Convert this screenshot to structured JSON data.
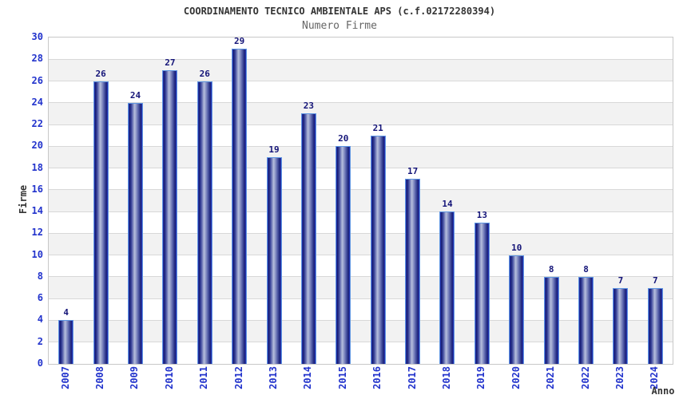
{
  "chart_data": {
    "type": "bar",
    "title": "COORDINAMENTO TECNICO AMBIENTALE APS (c.f.02172280394)",
    "subtitle": "Numero Firme",
    "xlabel": "Anno",
    "ylabel": "Firme",
    "categories": [
      "2007",
      "2008",
      "2009",
      "2010",
      "2011",
      "2012",
      "2013",
      "2014",
      "2015",
      "2016",
      "2017",
      "2018",
      "2019",
      "2020",
      "2021",
      "2022",
      "2023",
      "2024"
    ],
    "values": [
      4,
      26,
      24,
      27,
      26,
      29,
      19,
      23,
      20,
      21,
      17,
      14,
      13,
      10,
      8,
      8,
      7,
      7
    ],
    "ylim": [
      0,
      30
    ],
    "ytick_step": 2,
    "grid": true,
    "legend": "none",
    "band_fill": "alternating horizontal bands every 2 units",
    "colors": {
      "title_text": "#333333",
      "subtitle_text": "#666666",
      "axis_title_text": "#333333",
      "tick_text": "#2233cc",
      "value_label_text": "#141478",
      "bar_dark": "#1a2178",
      "bar_highlight": "#b7bfdd",
      "bar_edge_stripe": "#2a38c2",
      "bar_outline": "#5f96e2",
      "band_gray": "#f2f2f2",
      "gridline": "#d8d8d8",
      "plot_border": "#c8c8c8",
      "background": "#ffffff"
    }
  }
}
